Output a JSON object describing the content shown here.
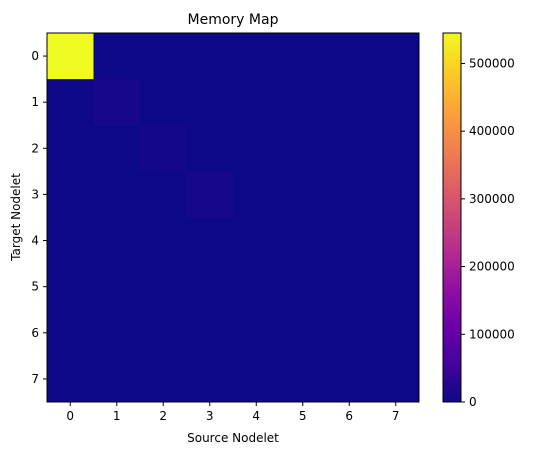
{
  "chart_data": {
    "type": "heatmap",
    "title": "Memory Map",
    "xlabel": "Source Nodelet",
    "ylabel": "Target Nodelet",
    "x_ticks": [
      "0",
      "1",
      "2",
      "3",
      "4",
      "5",
      "6",
      "7"
    ],
    "y_ticks": [
      "0",
      "1",
      "2",
      "3",
      "4",
      "5",
      "6",
      "7"
    ],
    "colormap": "plasma",
    "vmin": 0,
    "vmax": 545000,
    "colorbar_ticks": [
      "0",
      "100000",
      "200000",
      "300000",
      "400000",
      "500000"
    ],
    "colorbar_tick_values": [
      0,
      100000,
      200000,
      300000,
      400000,
      500000
    ],
    "values": [
      [
        545000,
        0,
        0,
        0,
        0,
        0,
        0,
        0
      ],
      [
        0,
        9000,
        0,
        0,
        0,
        0,
        0,
        0
      ],
      [
        0,
        0,
        7500,
        0,
        0,
        0,
        0,
        0
      ],
      [
        0,
        0,
        0,
        9000,
        0,
        0,
        0,
        0
      ],
      [
        0,
        0,
        0,
        0,
        0,
        0,
        0,
        0
      ],
      [
        0,
        0,
        0,
        0,
        0,
        0,
        0,
        0
      ],
      [
        0,
        0,
        0,
        0,
        0,
        0,
        0,
        0
      ],
      [
        0,
        0,
        0,
        0,
        0,
        0,
        0,
        0
      ]
    ],
    "grid": false,
    "colorbar_position": "right"
  }
}
